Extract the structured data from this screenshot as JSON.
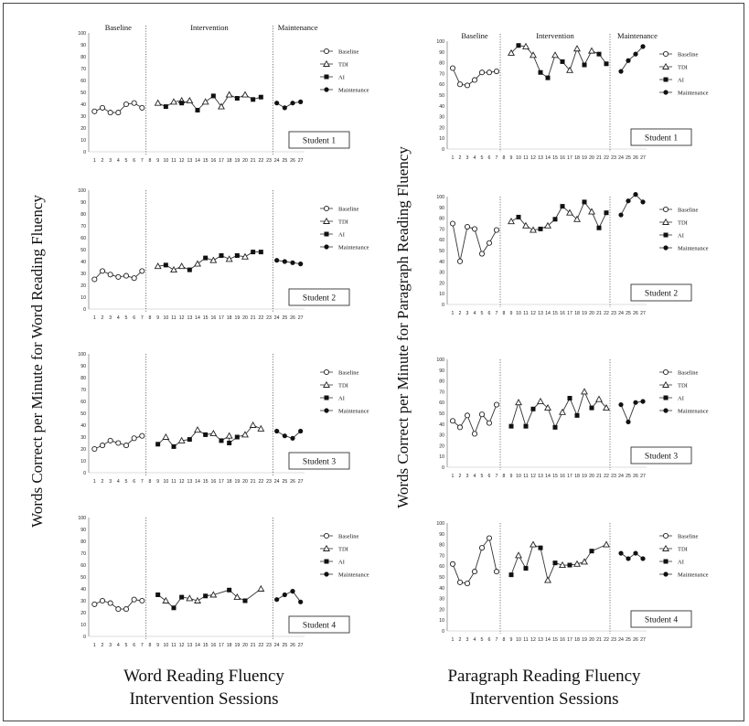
{
  "left_panel": {
    "ylabel": "Words Correct per Minute for Word Reading Fluency",
    "xlabel_line1": "Word Reading Fluency",
    "xlabel_line2": "Intervention Sessions"
  },
  "right_panel": {
    "ylabel": "Words Correct per Minute for Paragraph Reading Fluency",
    "xlabel_line1": "Paragraph Reading Fluency",
    "xlabel_line2": "Intervention Sessions"
  },
  "phase_labels": [
    "Baseline",
    "Intervention",
    "Maintenance"
  ],
  "legend": [
    "Baseline",
    "TDI",
    "AI",
    "Maintenance"
  ],
  "chart_data": [
    {
      "type": "line",
      "panel": "word",
      "student": "Student 1",
      "ylim": [
        0,
        100
      ],
      "yticks": [
        0,
        10,
        20,
        30,
        40,
        50,
        60,
        70,
        80,
        90,
        100
      ],
      "x_ticks": [
        1,
        2,
        3,
        4,
        5,
        6,
        7,
        8,
        9,
        10,
        11,
        12,
        13,
        14,
        15,
        16,
        17,
        18,
        19,
        20,
        21,
        22,
        23,
        24,
        25,
        26,
        27
      ],
      "show_phase_labels": true,
      "phase_lines": [
        7.5,
        23.5
      ],
      "series": [
        {
          "name": "Baseline",
          "marker": "open-circle",
          "x": [
            1,
            2,
            3,
            4,
            5,
            6,
            7
          ],
          "y": [
            34,
            37,
            33,
            33,
            40,
            41,
            37
          ]
        },
        {
          "name": "TDI",
          "marker": "open-triangle",
          "x": [
            9,
            11,
            12,
            13,
            15,
            17,
            18,
            20
          ],
          "y": [
            41,
            42,
            43,
            43,
            42,
            38,
            48,
            48
          ]
        },
        {
          "name": "AI",
          "marker": "filled-square",
          "x": [
            10,
            12,
            14,
            16,
            19,
            21,
            22
          ],
          "y": [
            38,
            41,
            35,
            47,
            45,
            44,
            46
          ]
        },
        {
          "name": "Maintenance",
          "marker": "filled-circle",
          "x": [
            24,
            25,
            26,
            27
          ],
          "y": [
            41,
            37,
            41,
            42
          ]
        }
      ]
    },
    {
      "type": "line",
      "panel": "word",
      "student": "Student 2",
      "ylim": [
        0,
        100
      ],
      "yticks": [
        0,
        10,
        20,
        30,
        40,
        50,
        60,
        70,
        80,
        90,
        100
      ],
      "x_ticks": [
        1,
        2,
        3,
        4,
        5,
        6,
        7,
        8,
        9,
        10,
        11,
        12,
        13,
        14,
        15,
        16,
        17,
        18,
        19,
        20,
        21,
        22,
        23,
        24,
        25,
        26,
        27
      ],
      "show_phase_labels": false,
      "phase_lines": [
        7.5,
        23.5
      ],
      "series": [
        {
          "name": "Baseline",
          "marker": "open-circle",
          "x": [
            1,
            2,
            3,
            4,
            5,
            6,
            7
          ],
          "y": [
            25,
            32,
            29,
            27,
            28,
            26,
            32
          ]
        },
        {
          "name": "TDI",
          "marker": "open-triangle",
          "x": [
            9,
            11,
            12,
            14,
            16,
            18,
            20
          ],
          "y": [
            36,
            33,
            36,
            38,
            41,
            42,
            44
          ]
        },
        {
          "name": "AI",
          "marker": "filled-square",
          "x": [
            10,
            13,
            15,
            17,
            19,
            21,
            22
          ],
          "y": [
            37,
            33,
            43,
            45,
            45,
            48,
            48
          ]
        },
        {
          "name": "Maintenance",
          "marker": "filled-circle",
          "x": [
            24,
            25,
            26,
            27
          ],
          "y": [
            41,
            40,
            39,
            38
          ]
        }
      ]
    },
    {
      "type": "line",
      "panel": "word",
      "student": "Student 3",
      "ylim": [
        0,
        100
      ],
      "yticks": [
        0,
        10,
        20,
        30,
        40,
        50,
        60,
        70,
        80,
        90,
        100
      ],
      "x_ticks": [
        1,
        2,
        3,
        4,
        5,
        6,
        7,
        8,
        9,
        10,
        11,
        12,
        13,
        14,
        15,
        16,
        17,
        18,
        19,
        20,
        21,
        22,
        23,
        24,
        25,
        26,
        27
      ],
      "show_phase_labels": false,
      "phase_lines": [
        7.5,
        23.5
      ],
      "series": [
        {
          "name": "Baseline",
          "marker": "open-circle",
          "x": [
            1,
            2,
            3,
            4,
            5,
            6,
            7
          ],
          "y": [
            20,
            23,
            27,
            25,
            23,
            29,
            31
          ]
        },
        {
          "name": "TDI",
          "marker": "open-triangle",
          "x": [
            10,
            12,
            14,
            16,
            18,
            20,
            21,
            22
          ],
          "y": [
            30,
            27,
            36,
            33,
            31,
            32,
            40,
            37
          ]
        },
        {
          "name": "AI",
          "marker": "filled-square",
          "x": [
            9,
            11,
            13,
            15,
            17,
            18,
            19
          ],
          "y": [
            24,
            22,
            28,
            32,
            27,
            25,
            30
          ]
        },
        {
          "name": "Maintenance",
          "marker": "filled-circle",
          "x": [
            24,
            25,
            26,
            27
          ],
          "y": [
            35,
            31,
            29,
            35
          ]
        }
      ]
    },
    {
      "type": "line",
      "panel": "word",
      "student": "Student 4",
      "ylim": [
        0,
        100
      ],
      "yticks": [
        0,
        10,
        20,
        30,
        40,
        50,
        60,
        70,
        80,
        90,
        100
      ],
      "x_ticks": [
        1,
        2,
        3,
        4,
        5,
        6,
        7,
        8,
        9,
        10,
        11,
        12,
        13,
        14,
        15,
        16,
        17,
        18,
        19,
        20,
        21,
        22,
        23,
        24,
        25,
        26,
        27
      ],
      "show_phase_labels": false,
      "phase_lines": [
        7.5,
        23.5
      ],
      "series": [
        {
          "name": "Baseline",
          "marker": "open-circle",
          "x": [
            1,
            2,
            3,
            4,
            5,
            6,
            7
          ],
          "y": [
            27,
            30,
            28,
            23,
            23,
            31,
            30
          ]
        },
        {
          "name": "TDI",
          "marker": "open-triangle",
          "x": [
            10,
            13,
            14,
            16,
            19,
            22
          ],
          "y": [
            30,
            32,
            30,
            35,
            33,
            40
          ]
        },
        {
          "name": "AI",
          "marker": "filled-square",
          "x": [
            9,
            11,
            12,
            15,
            18,
            20
          ],
          "y": [
            35,
            24,
            33,
            34,
            39,
            30
          ]
        },
        {
          "name": "Maintenance",
          "marker": "filled-circle",
          "x": [
            24,
            25,
            26,
            27
          ],
          "y": [
            31,
            35,
            38,
            29
          ]
        }
      ]
    },
    {
      "type": "line",
      "panel": "paragraph",
      "student": "Student 1",
      "ylim": [
        0,
        100
      ],
      "yticks": [
        0,
        10,
        20,
        30,
        40,
        50,
        60,
        70,
        80,
        90,
        100
      ],
      "x_ticks": [
        1,
        2,
        3,
        4,
        5,
        6,
        7,
        8,
        9,
        10,
        11,
        12,
        13,
        14,
        15,
        16,
        17,
        18,
        19,
        20,
        21,
        22,
        23,
        24,
        25,
        26,
        27
      ],
      "show_phase_labels": true,
      "phase_lines": [
        7.5,
        22.5
      ],
      "series": [
        {
          "name": "Baseline",
          "marker": "open-circle",
          "x": [
            1,
            2,
            3,
            4,
            5,
            6,
            7
          ],
          "y": [
            75,
            60,
            59,
            64,
            71,
            71,
            72
          ]
        },
        {
          "name": "TDI",
          "marker": "open-triangle",
          "x": [
            9,
            11,
            12,
            15,
            17,
            18,
            20
          ],
          "y": [
            89,
            95,
            87,
            87,
            73,
            93,
            91
          ]
        },
        {
          "name": "AI",
          "marker": "filled-square",
          "x": [
            10,
            13,
            14,
            16,
            19,
            21,
            22
          ],
          "y": [
            96,
            71,
            66,
            81,
            78,
            88,
            79
          ]
        },
        {
          "name": "Maintenance",
          "marker": "filled-circle",
          "x": [
            24,
            25,
            26,
            27
          ],
          "y": [
            72,
            82,
            88,
            95
          ]
        }
      ]
    },
    {
      "type": "line",
      "panel": "paragraph",
      "student": "Student 2",
      "ylim": [
        0,
        100
      ],
      "yticks": [
        0,
        10,
        20,
        30,
        40,
        50,
        60,
        70,
        80,
        90,
        100
      ],
      "x_ticks": [
        1,
        2,
        3,
        4,
        5,
        6,
        7,
        8,
        9,
        10,
        11,
        12,
        13,
        14,
        15,
        16,
        17,
        18,
        19,
        20,
        21,
        22,
        23,
        24,
        25,
        26,
        27
      ],
      "show_phase_labels": false,
      "phase_lines": [
        7.5,
        22.5
      ],
      "series": [
        {
          "name": "Baseline",
          "marker": "open-circle",
          "x": [
            1,
            2,
            3,
            4,
            5,
            6,
            7
          ],
          "y": [
            75,
            40,
            72,
            70,
            47,
            57,
            69
          ]
        },
        {
          "name": "TDI",
          "marker": "open-triangle",
          "x": [
            9,
            11,
            12,
            14,
            17,
            18,
            20
          ],
          "y": [
            77,
            73,
            69,
            73,
            85,
            79,
            86
          ]
        },
        {
          "name": "AI",
          "marker": "filled-square",
          "x": [
            10,
            13,
            15,
            16,
            19,
            21,
            22
          ],
          "y": [
            81,
            70,
            79,
            91,
            95,
            71,
            85
          ]
        },
        {
          "name": "Maintenance",
          "marker": "filled-circle",
          "x": [
            24,
            25,
            26,
            27
          ],
          "y": [
            83,
            96,
            102,
            95
          ]
        }
      ]
    },
    {
      "type": "line",
      "panel": "paragraph",
      "student": "Student 3",
      "ylim": [
        0,
        100
      ],
      "yticks": [
        0,
        10,
        20,
        30,
        40,
        50,
        60,
        70,
        80,
        90,
        100
      ],
      "x_ticks": [
        1,
        2,
        3,
        4,
        5,
        6,
        7,
        8,
        9,
        10,
        11,
        12,
        13,
        14,
        15,
        16,
        17,
        18,
        19,
        20,
        21,
        22,
        23,
        24,
        25,
        26,
        27
      ],
      "show_phase_labels": false,
      "phase_lines": [
        7.5,
        22.5
      ],
      "series": [
        {
          "name": "Baseline",
          "marker": "open-circle",
          "x": [
            1,
            2,
            3,
            4,
            5,
            6,
            7
          ],
          "y": [
            43,
            37,
            48,
            31,
            49,
            41,
            58
          ]
        },
        {
          "name": "TDI",
          "marker": "open-triangle",
          "x": [
            10,
            13,
            14,
            16,
            19,
            21,
            22
          ],
          "y": [
            60,
            61,
            55,
            51,
            70,
            63,
            55
          ]
        },
        {
          "name": "AI",
          "marker": "filled-square",
          "x": [
            9,
            11,
            12,
            15,
            17,
            18,
            20
          ],
          "y": [
            38,
            38,
            54,
            37,
            64,
            48,
            55
          ]
        },
        {
          "name": "Maintenance",
          "marker": "filled-circle",
          "x": [
            24,
            25,
            26,
            27
          ],
          "y": [
            58,
            42,
            60,
            61
          ]
        }
      ]
    },
    {
      "type": "line",
      "panel": "paragraph",
      "student": "Student 4",
      "ylim": [
        0,
        100
      ],
      "yticks": [
        0,
        10,
        20,
        30,
        40,
        50,
        60,
        70,
        80,
        90,
        100
      ],
      "x_ticks": [
        1,
        2,
        3,
        4,
        5,
        6,
        7,
        8,
        9,
        10,
        11,
        12,
        13,
        14,
        15,
        16,
        17,
        18,
        19,
        20,
        21,
        22,
        23,
        24,
        25,
        26,
        27
      ],
      "show_phase_labels": false,
      "phase_lines": [
        7.5,
        22.5
      ],
      "series": [
        {
          "name": "Baseline",
          "marker": "open-circle",
          "x": [
            1,
            2,
            3,
            4,
            5,
            6,
            7
          ],
          "y": [
            62,
            45,
            44,
            55,
            77,
            86,
            55
          ]
        },
        {
          "name": "TDI",
          "marker": "open-triangle",
          "x": [
            10,
            12,
            14,
            16,
            18,
            19,
            22
          ],
          "y": [
            70,
            80,
            47,
            61,
            62,
            64,
            80
          ]
        },
        {
          "name": "AI",
          "marker": "filled-square",
          "x": [
            9,
            11,
            13,
            15,
            17,
            20
          ],
          "y": [
            52,
            58,
            77,
            63,
            61,
            74
          ]
        },
        {
          "name": "Maintenance",
          "marker": "filled-circle",
          "x": [
            24,
            25,
            26,
            27
          ],
          "y": [
            72,
            67,
            72,
            67
          ]
        }
      ]
    }
  ]
}
